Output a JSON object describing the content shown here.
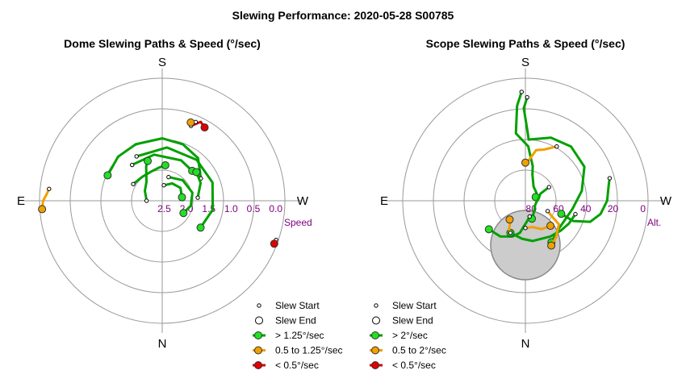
{
  "title": "Slewing Performance: 2020-05-28 S00785",
  "colors": {
    "fast": "#00a000",
    "fast_fill": "#22e022",
    "mid": "#f0a000",
    "mid_fill": "#f0a000",
    "slow": "#d00000",
    "slow_fill": "#e00000",
    "grid": "#999999",
    "tick": "#800080"
  },
  "chart_data": [
    {
      "type": "polar",
      "title": "Dome Slewing Paths & Speed (°/sec)",
      "cardinals": {
        "top": "S",
        "bottom": "N",
        "left": "E",
        "right": "W"
      },
      "radial_label": "Speed",
      "radial_ticks": [
        "2.5",
        "2.0",
        "1.5",
        "1.0",
        "0.5",
        "0.0"
      ],
      "radial_tick_values": [
        2.5,
        2.0,
        1.5,
        1.0,
        0.5,
        0.0
      ],
      "radial_range": [
        2.75,
        0.0
      ],
      "legend": [
        "Slew Start",
        "Slew End",
        "> 1.25°/sec",
        "0.5 to 1.25°/sec",
        "< 0.5°/sec"
      ],
      "paths": [
        {
          "speed": "fast",
          "points": [
            [
              -6,
              2.4
            ],
            [
              -30,
              2.3
            ],
            [
              -55,
              2.25
            ],
            [
              -80,
              2.3
            ]
          ],
          "end_marker": "fast"
        },
        {
          "speed": "fast",
          "points": [
            [
              -15,
              2.2
            ],
            [
              -45,
              2.1
            ],
            [
              -75,
              2.05
            ],
            [
              -100,
              2.1
            ],
            [
              -120,
              2.2
            ]
          ],
          "end_marker": "fast"
        },
        {
          "speed": "fast",
          "points": [
            [
              30,
              1.6
            ],
            [
              -5,
              1.55
            ],
            [
              -40,
              1.55
            ],
            [
              -70,
              1.55
            ],
            [
              -100,
              1.6
            ],
            [
              -125,
              1.7
            ]
          ],
          "end_marker": "fast"
        },
        {
          "speed": "fast",
          "points": [
            [
              40,
              1.7
            ],
            [
              10,
              1.7
            ],
            [
              -25,
              1.75
            ],
            [
              -45,
              1.8
            ]
          ],
          "end_marker": "fast"
        },
        {
          "speed": "fast",
          "points": [
            [
              -60,
              1.75
            ],
            [
              -40,
              1.5
            ],
            [
              -20,
              1.4
            ],
            [
              0,
              1.35
            ],
            [
              25,
              1.35
            ],
            [
              45,
              1.35
            ],
            [
              65,
              1.4
            ]
          ],
          "end_marker": "fast"
        },
        {
          "speed": "fast",
          "points": [
            [
              90,
              2.4
            ],
            [
              60,
              2.3
            ],
            [
              40,
              2.2
            ],
            [
              25,
              1.9
            ],
            [
              20,
              1.8
            ]
          ],
          "end_marker": "fast"
        },
        {
          "speed": "fast",
          "points": [
            [
              60,
              2.0
            ],
            [
              40,
              2.05
            ],
            [
              20,
              2.05
            ],
            [
              5,
              2.0
            ],
            [
              -5,
              1.95
            ]
          ],
          "end_marker": "fast"
        },
        {
          "speed": "fast",
          "points": [
            [
              -85,
              1.95
            ],
            [
              -65,
              1.8
            ],
            [
              -50,
              1.75
            ]
          ],
          "end_marker": "fast"
        },
        {
          "speed": "mid",
          "points": [
            [
              84,
              0.2
            ],
            [
              87,
              0.15
            ],
            [
              90,
              0.08
            ],
            [
              94,
              0.05
            ]
          ],
          "end_marker": "mid"
        },
        {
          "speed": "slow",
          "points": [
            [
              -21,
              0.95
            ],
            [
              -26,
              0.78
            ],
            [
              -30,
              0.85
            ]
          ],
          "end_marker": "slow"
        },
        {
          "speed": "mid",
          "points": [
            [
              -23,
              0.83
            ],
            [
              -20,
              0.88
            ]
          ],
          "end_marker": "mid"
        },
        {
          "speed": "slow",
          "points": [
            [
              -109,
              0.05
            ],
            [
              -111,
              0.06
            ]
          ],
          "end_marker": "slow"
        }
      ]
    },
    {
      "type": "polar",
      "title": "Scope Slewing Paths & Speed (°/sec)",
      "cardinals": {
        "top": "S",
        "bottom": "N",
        "left": "E",
        "right": "W"
      },
      "radial_label": "Alt.",
      "radial_ticks": [
        "80",
        "60",
        "40",
        "20",
        "0"
      ],
      "radial_tick_values": [
        80,
        60,
        40,
        20,
        0
      ],
      "radial_range": [
        90,
        0
      ],
      "legend": [
        "Slew Start",
        "Slew End",
        "> 2°/sec",
        "0.5 to 2°/sec",
        "< 0.5°/sec"
      ],
      "paths": [
        {
          "speed": "fast",
          "points": [
            [
              -75,
              26
            ],
            [
              -80,
              28
            ],
            [
              -90,
              30
            ],
            [
              -100,
              34
            ],
            [
              -108,
              40
            ],
            [
              -113,
              52
            ],
            [
              -110,
              62
            ]
          ],
          "end_marker": "fast"
        },
        {
          "speed": "fast",
          "points": [
            [
              2,
              10
            ],
            [
              5,
              20
            ],
            [
              8,
              40
            ],
            [
              -3,
              50
            ],
            [
              -7,
              58
            ],
            [
              -12,
              64
            ],
            [
              -15,
              70
            ],
            [
              -30,
              78
            ],
            [
              -55,
              80
            ],
            [
              -70,
              82
            ]
          ],
          "end_marker": "fast"
        },
        {
          "speed": "fast",
          "points": [
            [
              -1,
              14
            ],
            [
              1,
              22
            ],
            [
              -2,
              40
            ],
            [
              -3,
              45
            ],
            [
              -22,
              40
            ],
            [
              -40,
              38
            ],
            [
              -60,
              40
            ],
            [
              -80,
              48
            ],
            [
              -100,
              55
            ],
            [
              -130,
              58
            ],
            [
              -148,
              54
            ]
          ],
          "end_marker": "fast"
        },
        {
          "speed": "fast",
          "points": [
            [
              -60,
              70
            ],
            [
              -65,
              78
            ],
            [
              -80,
              80
            ],
            [
              -100,
              82
            ],
            [
              -120,
              82
            ],
            [
              -140,
              80
            ],
            [
              -160,
              76
            ]
          ],
          "end_marker": "fast"
        },
        {
          "speed": "fast",
          "points": [
            [
              -165,
              78
            ],
            [
              -175,
              75
            ],
            [
              -190,
              66
            ],
            [
              -200,
              62
            ],
            [
              -215,
              58
            ],
            [
              -232,
              56
            ]
          ],
          "end_marker": "fast"
        },
        {
          "speed": "fast",
          "points": [
            [
              -105,
              52
            ],
            [
              -118,
              54
            ],
            [
              -130,
              56
            ],
            [
              -145,
              58
            ],
            [
              -170,
              60
            ],
            [
              -185,
              62
            ],
            [
              -205,
              64
            ]
          ],
          "end_marker": "fast"
        },
        {
          "speed": "mid",
          "points": [
            [
              -30,
              44
            ],
            [
              -20,
              50
            ],
            [
              -12,
              52
            ],
            [
              -5,
              60
            ],
            [
              0,
              62
            ]
          ],
          "end_marker": "mid"
        },
        {
          "speed": "mid",
          "points": [
            [
              -115,
              72
            ],
            [
              -120,
              68
            ],
            [
              -125,
              60
            ],
            [
              -140,
              55
            ],
            [
              -150,
              52
            ]
          ],
          "end_marker": "mid"
        },
        {
          "speed": "mid",
          "points": [
            [
              -180,
              70
            ],
            [
              -165,
              70
            ],
            [
              -150,
              66
            ],
            [
              -135,
              64
            ]
          ],
          "end_marker": "mid"
        },
        {
          "speed": "mid",
          "points": [
            [
              -205,
              64
            ],
            [
              -210,
              66
            ],
            [
              -214,
              70
            ],
            [
              -220,
              72
            ]
          ],
          "end_marker": "mid"
        }
      ]
    }
  ]
}
